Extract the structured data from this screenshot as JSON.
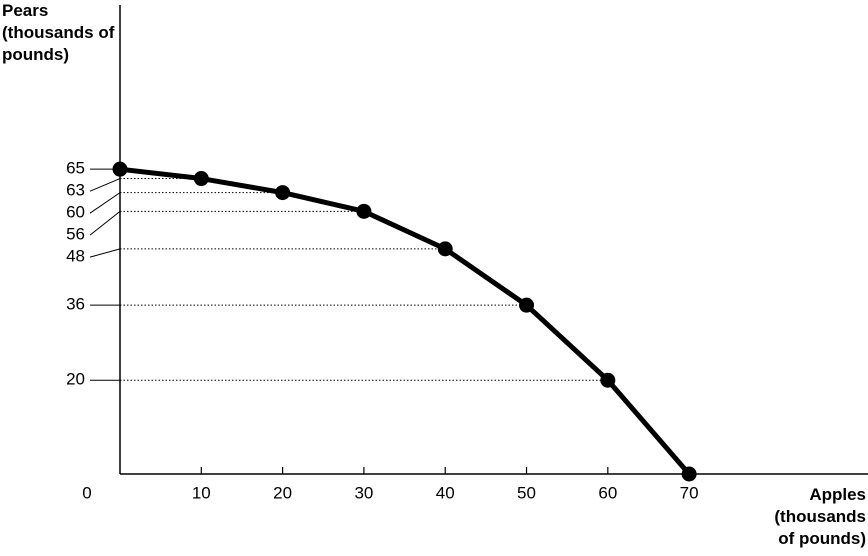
{
  "chart_data": {
    "type": "line",
    "xlabel": "Apples (thousands of pounds)",
    "ylabel": "Pears (thousands of pounds)",
    "x": [
      0,
      10,
      20,
      30,
      40,
      50,
      60,
      70
    ],
    "series": [
      {
        "color": "#000000",
        "values": [
          65,
          63,
          60,
          56,
          48,
          36,
          20,
          0
        ]
      }
    ],
    "xlim": [
      0,
      92
    ],
    "ylim": [
      0,
      100
    ],
    "xticks": [
      0,
      10,
      20,
      30,
      40,
      50,
      60,
      70
    ],
    "yticks": [
      20,
      36,
      48,
      56,
      60,
      63,
      65
    ]
  }
}
